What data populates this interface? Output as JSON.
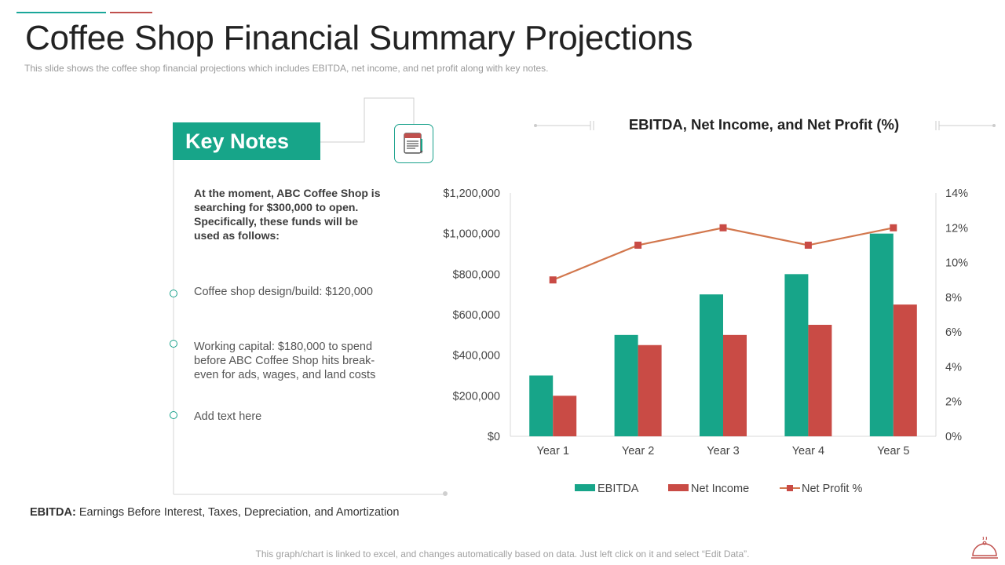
{
  "colors": {
    "teal": "#17a589",
    "red": "#c94b45",
    "line": "#d2774d",
    "accent_teal": "#1aa79a",
    "accent_red": "#c0504d"
  },
  "header": {
    "title": "Coffee Shop Financial Summary Projections",
    "subtitle": "This slide shows the coffee  shop financial projections which includes EBITDA,  net income, and net profit  along with key notes."
  },
  "key_notes": {
    "heading": "Key Notes",
    "icon": "notes-clipboard-icon",
    "intro": "At the moment, ABC Coffee Shop is searching for $300,000 to open. Specifically, these funds will be used as follows:",
    "items": [
      "Coffee shop design/build: $120,000",
      "Working capital: $180,000 to spend before ABC Coffee Shop hits break-even for ads, wages, and land costs",
      "Add text here"
    ]
  },
  "footnote": {
    "term": "EBITDA:",
    "definition": " Earnings Before Interest, Taxes, Depreciation, and Amortization"
  },
  "bottom_note": "This graph/chart is linked to excel, and changes automatically based on data. Just left click on it and select “Edit Data”.",
  "chart_data": {
    "type": "bar",
    "title": "EBITDA, Net Income, and Net Profit (%)",
    "categories": [
      "Year 1",
      "Year 2",
      "Year 3",
      "Year 4",
      "Year 5"
    ],
    "series": [
      {
        "name": "EBITDA",
        "type": "bar",
        "axis": "left",
        "values": [
          300000,
          500000,
          700000,
          800000,
          1000000
        ]
      },
      {
        "name": "Net Income",
        "type": "bar",
        "axis": "left",
        "values": [
          200000,
          450000,
          500000,
          550000,
          650000
        ]
      },
      {
        "name": "Net Profit %",
        "type": "line",
        "axis": "right",
        "values": [
          9,
          11,
          12,
          11,
          12
        ]
      }
    ],
    "ylim": [
      0,
      1200000
    ],
    "yticks": [
      "$0",
      "$200,000",
      "$400,000",
      "$600,000",
      "$800,000",
      "$1,000,000",
      "$1,200,000"
    ],
    "y2lim": [
      0,
      14
    ],
    "y2ticks": [
      "0%",
      "2%",
      "4%",
      "6%",
      "8%",
      "10%",
      "12%",
      "14%"
    ],
    "legend": "bottom",
    "grid": false
  }
}
